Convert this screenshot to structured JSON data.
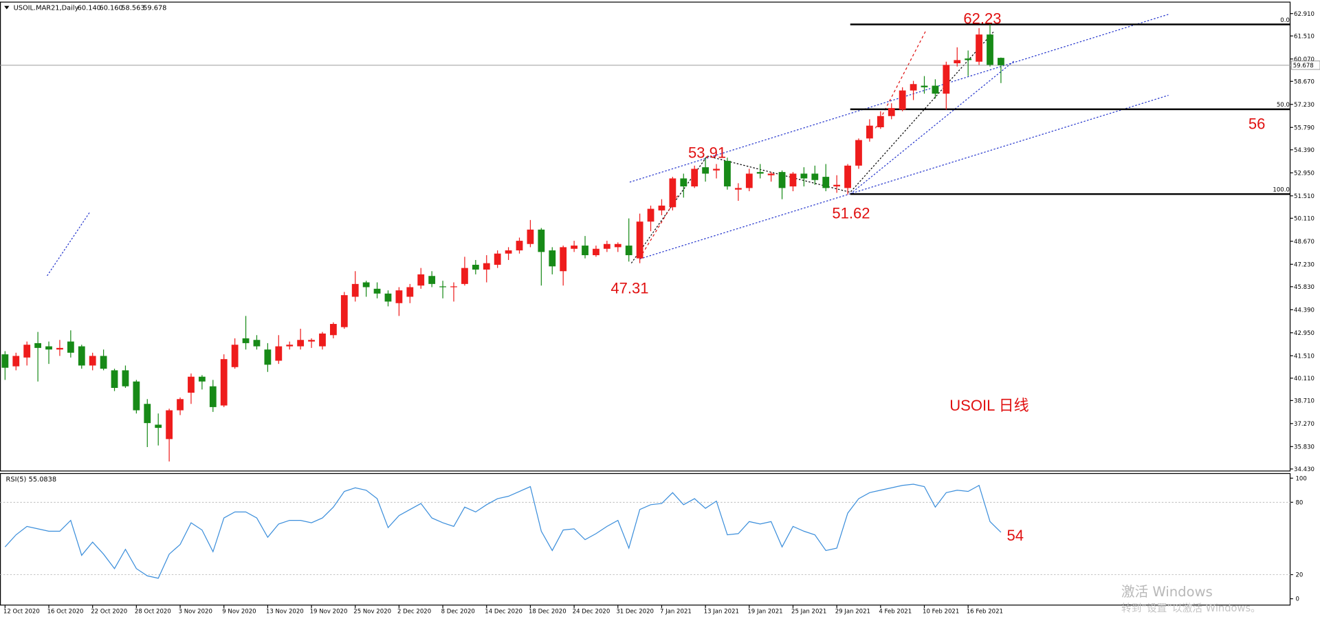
{
  "chart_data": [
    {
      "type": "candlestick",
      "title": "USOIL.MAR21,Daily",
      "header_values": [
        "60.140",
        "60.160",
        "58.563",
        "59.678"
      ],
      "categories": [
        "12 Oct 2020",
        null,
        null,
        null,
        "16 Oct 2020",
        null,
        null,
        null,
        "22 Oct 2020",
        null,
        null,
        null,
        "28 Oct 2020",
        null,
        null,
        null,
        "3 Nov 2020",
        null,
        null,
        null,
        "9 Nov 2020",
        null,
        null,
        null,
        "13 Nov 2020",
        null,
        null,
        null,
        "19 Nov 2020",
        null,
        null,
        null,
        "25 Nov 2020",
        null,
        null,
        null,
        "2 Dec 2020",
        null,
        null,
        null,
        "8 Dec 2020",
        null,
        null,
        null,
        "14 Dec 2020",
        null,
        null,
        null,
        "18 Dec 2020",
        null,
        null,
        null,
        "24 Dec 2020",
        null,
        null,
        null,
        "31 Dec 2020",
        null,
        null,
        null,
        "7 Jan 2021",
        null,
        null,
        null,
        "13 Jan 2021",
        null,
        null,
        null,
        "19 Jan 2021",
        null,
        null,
        null,
        "25 Jan 2021",
        null,
        null,
        null,
        "29 Jan 2021",
        null,
        null,
        null,
        "4 Feb 2021",
        null,
        null,
        null,
        "10 Feb 2021",
        null,
        null,
        null,
        "16 Feb 2021",
        null,
        null,
        null
      ],
      "open": [
        41.6,
        40.85,
        41.4,
        42.3,
        42.1,
        41.9,
        42.4,
        42.1,
        40.9,
        41.5,
        40.6,
        40.6,
        39.9,
        38.5,
        37.2,
        36.3,
        38.1,
        39.2,
        40.2,
        39.6,
        38.4,
        40.8,
        42.6,
        42.5,
        41.9,
        41.2,
        42.1,
        42.1,
        42.4,
        42.1,
        42.8,
        43.3,
        45.2,
        46.1,
        45.7,
        45.4,
        44.8,
        45.2,
        45.9,
        46.5,
        45.85,
        45.8,
        46.0,
        47.2,
        46.9,
        47.2,
        47.9,
        48.1,
        48.5,
        49.4,
        48.1,
        46.8,
        48.2,
        48.4,
        47.8,
        48.2,
        48.3,
        48.4,
        47.6,
        49.9,
        50.6,
        50.8,
        52.6,
        52.1,
        53.3,
        53.1,
        53.7,
        51.9,
        52.0,
        53.0,
        52.8,
        53.0,
        52.1,
        52.9,
        52.9,
        52.7,
        52.1,
        52.0,
        53.4,
        55.1,
        55.8,
        56.5,
        56.9,
        58.1,
        58.4,
        58.4,
        57.9,
        59.8,
        60.1,
        59.9,
        61.6,
        60.14
      ],
      "high": [
        41.8,
        41.7,
        42.4,
        43.0,
        42.4,
        42.5,
        43.1,
        42.2,
        41.7,
        41.9,
        40.7,
        40.9,
        40.0,
        38.8,
        37.9,
        38.2,
        38.9,
        40.4,
        40.3,
        40.0,
        41.6,
        42.6,
        44.0,
        42.8,
        42.3,
        42.8,
        42.4,
        43.2,
        42.6,
        43.0,
        43.6,
        45.5,
        46.8,
        46.2,
        46.1,
        45.6,
        45.8,
        46.0,
        47.0,
        46.8,
        46.2,
        46.1,
        47.7,
        47.5,
        47.8,
        48.1,
        48.3,
        48.9,
        50.0,
        49.5,
        48.3,
        48.4,
        48.7,
        49.0,
        48.4,
        48.7,
        48.6,
        50.1,
        50.4,
        50.9,
        51.3,
        52.7,
        52.9,
        53.4,
        53.9,
        53.5,
        53.9,
        52.3,
        53.2,
        53.5,
        53.0,
        53.1,
        53.0,
        53.3,
        53.4,
        53.5,
        52.8,
        53.5,
        55.1,
        56.3,
        56.8,
        57.3,
        58.3,
        58.7,
        59.0,
        58.8,
        59.9,
        60.8,
        60.6,
        62.0,
        62.23,
        60.16
      ],
      "low": [
        40.0,
        40.6,
        40.9,
        39.9,
        41.0,
        41.5,
        41.4,
        40.7,
        40.6,
        40.6,
        39.3,
        39.5,
        37.9,
        35.8,
        35.9,
        34.9,
        37.8,
        38.5,
        39.4,
        38.0,
        38.3,
        40.7,
        41.9,
        41.9,
        40.5,
        41.0,
        41.9,
        41.9,
        42.0,
        41.9,
        42.6,
        43.2,
        44.9,
        45.2,
        45.1,
        44.6,
        44.0,
        44.8,
        45.7,
        45.8,
        45.1,
        44.9,
        45.9,
        46.6,
        46.1,
        47.0,
        47.5,
        47.9,
        48.3,
        45.9,
        46.6,
        45.9,
        48.0,
        47.6,
        47.7,
        48.0,
        48.0,
        47.4,
        47.3,
        49.3,
        50.3,
        50.6,
        51.4,
        52.0,
        52.4,
        52.6,
        51.9,
        51.2,
        51.8,
        52.6,
        52.4,
        51.3,
        51.8,
        52.1,
        52.2,
        51.8,
        51.7,
        51.6,
        53.2,
        54.9,
        55.7,
        56.3,
        56.8,
        57.5,
        57.9,
        57.6,
        56.9,
        59.6,
        59.0,
        59.7,
        59.6,
        58.563
      ],
      "close": [
        40.76,
        41.5,
        42.2,
        42.0,
        41.9,
        42.0,
        41.7,
        40.9,
        41.5,
        40.7,
        39.5,
        39.6,
        38.1,
        37.3,
        37.0,
        38.1,
        38.8,
        40.2,
        39.9,
        38.3,
        41.3,
        42.2,
        42.3,
        42.1,
        40.95,
        42.1,
        42.2,
        42.5,
        42.5,
        42.9,
        43.5,
        45.3,
        46.0,
        45.8,
        45.4,
        44.9,
        45.6,
        45.8,
        46.6,
        46.0,
        45.8,
        45.85,
        47.0,
        46.9,
        47.3,
        47.9,
        48.1,
        48.7,
        49.4,
        48.0,
        47.1,
        48.3,
        48.4,
        47.8,
        48.2,
        48.5,
        48.5,
        47.8,
        49.9,
        50.7,
        50.9,
        52.6,
        52.1,
        53.2,
        52.9,
        53.2,
        52.1,
        52.0,
        52.9,
        52.9,
        52.9,
        52.0,
        52.9,
        52.6,
        52.5,
        52.0,
        52.2,
        53.4,
        55.0,
        55.9,
        56.5,
        57.0,
        58.1,
        58.5,
        58.3,
        57.9,
        59.7,
        60.0,
        60.0,
        61.6,
        59.7,
        59.678
      ],
      "up_color": "#ee1c1c",
      "down_color": "#178a17",
      "ylim": [
        34.33,
        63.6
      ],
      "yticks": [
        {
          "value": 62.91,
          "label": "62.910"
        },
        {
          "value": 61.51,
          "label": "61.510"
        },
        {
          "value": 60.07,
          "label": "60.070"
        },
        {
          "value": 58.67,
          "label": "58.670"
        },
        {
          "value": 57.23,
          "label": "57.230"
        },
        {
          "value": 55.79,
          "label": "55.790"
        },
        {
          "value": 54.39,
          "label": "54.390"
        },
        {
          "value": 52.95,
          "label": "52.950"
        },
        {
          "value": 51.51,
          "label": "51.510"
        },
        {
          "value": 50.11,
          "label": "50.110"
        },
        {
          "value": 48.67,
          "label": "48.670"
        },
        {
          "value": 47.23,
          "label": "47.230"
        },
        {
          "value": 45.83,
          "label": "45.830"
        },
        {
          "value": 44.39,
          "label": "44.390"
        },
        {
          "value": 42.95,
          "label": "42.950"
        },
        {
          "value": 41.51,
          "label": "41.510"
        },
        {
          "value": 40.11,
          "label": "40.110"
        },
        {
          "value": 38.71,
          "label": "38.710"
        },
        {
          "value": 37.27,
          "label": "37.270"
        },
        {
          "value": 35.83,
          "label": "35.830"
        },
        {
          "value": 34.43,
          "label": "34.430"
        }
      ],
      "current_price": {
        "value": 59.678,
        "label": "59.678"
      },
      "fib": {
        "high": 62.23,
        "low": 51.62,
        "levels": [
          {
            "value": 0,
            "label": "0.0"
          },
          {
            "value": 50,
            "label": "50.0"
          },
          {
            "value": 100,
            "label": "100.0"
          }
        ]
      },
      "annotations": [
        53.91,
        47.31,
        56
      ],
      "note": "USOIL 日线"
    },
    {
      "type": "line",
      "title": "RSI(5)",
      "color": "#3b8edb",
      "values": [
        43,
        53,
        60,
        58,
        56,
        56,
        65,
        36,
        47,
        37,
        25,
        41,
        25,
        19,
        17,
        37,
        45,
        63,
        57,
        39,
        67,
        72,
        72,
        67,
        51,
        62,
        65,
        65,
        63,
        67,
        76,
        89,
        92,
        90,
        83,
        59,
        69,
        74,
        79,
        67,
        63,
        60,
        76,
        72,
        78,
        83,
        85,
        89,
        93,
        56,
        40,
        57,
        58,
        49,
        54,
        60,
        65,
        42,
        74,
        78,
        79,
        88,
        78,
        83,
        75,
        81,
        53,
        54,
        64,
        62,
        64,
        43,
        60,
        56,
        53,
        40,
        42,
        71,
        83,
        88,
        90,
        92,
        94,
        95,
        93,
        76,
        88,
        90,
        89,
        94,
        64,
        55.0838
      ],
      "ylim": [
        -5.6,
        103.5
      ],
      "yticks": [
        100,
        80,
        20,
        0
      ],
      "levels": [
        80,
        20
      ],
      "annotations": [
        54
      ]
    }
  ],
  "watermark": {
    "line1": "激活 Windows",
    "line2": "转到“设置”以激活 Windows。"
  }
}
